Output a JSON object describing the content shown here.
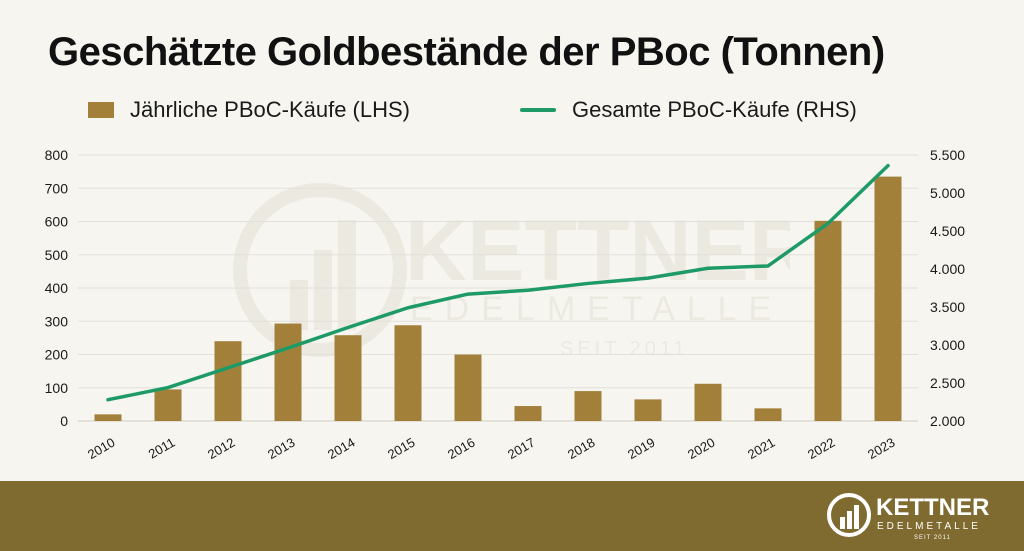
{
  "title": "Geschätzte Goldbestände der PBoc (Tonnen)",
  "legend": {
    "bar_label": "Jährliche PBoC-Käufe (LHS)",
    "line_label": "Gesamte PBoC-Käufe (RHS)"
  },
  "colors": {
    "bar": "#a2803a",
    "line": "#1e9a66",
    "footer": "#7f6a2f",
    "grid": "#e2e0da",
    "background": "#f6f5f0"
  },
  "watermark": {
    "brand": "KETTNER",
    "sub": "EDELMETALLE",
    "since": "SEIT 2011"
  },
  "footer_logo": {
    "brand": "KETTNER",
    "sub": "EDELMETALLE",
    "since": "SEIT 2011"
  },
  "chart_data": {
    "type": "bar",
    "categories": [
      "2010",
      "2011",
      "2012",
      "2013",
      "2014",
      "2015",
      "2016",
      "2017",
      "2018",
      "2019",
      "2020",
      "2021",
      "2022",
      "2023"
    ],
    "series": [
      {
        "name": "Jährliche PBoC-Käufe (LHS)",
        "type": "bar",
        "axis": "left",
        "values": [
          20,
          95,
          240,
          293,
          258,
          288,
          200,
          45,
          90,
          65,
          112,
          38,
          602,
          735
        ]
      },
      {
        "name": "Gesamte PBoC-Käufe (RHS)",
        "type": "line",
        "axis": "right",
        "values": [
          2280,
          2440,
          2700,
          2960,
          3230,
          3490,
          3670,
          3720,
          3810,
          3880,
          4010,
          4040,
          4600,
          5360
        ]
      }
    ],
    "left_axis": {
      "min": 0,
      "max": 800,
      "ticks": [
        "0",
        "100",
        "200",
        "300",
        "400",
        "500",
        "600",
        "700",
        "800"
      ]
    },
    "right_axis": {
      "min": 2000,
      "max": 5500,
      "ticks": [
        "2.000",
        "2.500",
        "3.000",
        "3.500",
        "4.000",
        "4.500",
        "5.000",
        "5.500"
      ]
    },
    "grid": true,
    "legend_position": "top-left"
  }
}
